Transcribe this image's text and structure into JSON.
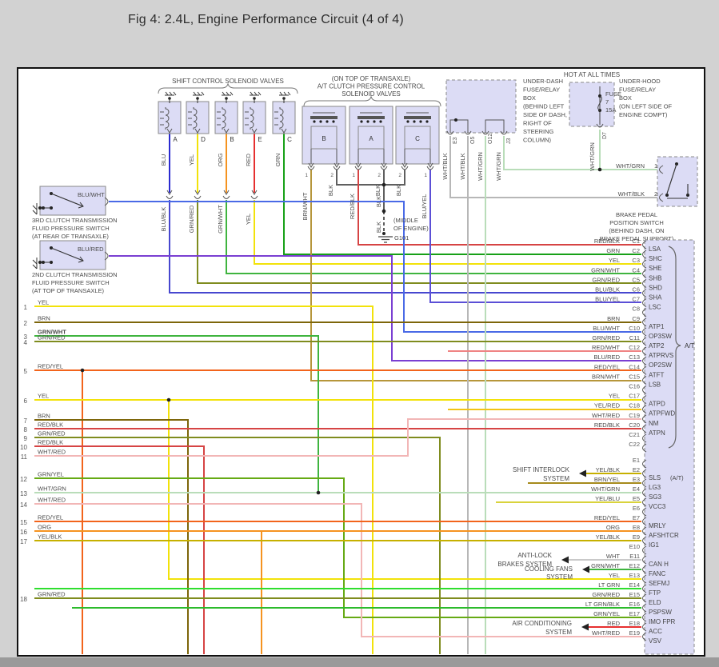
{
  "title": "Fig 4: 2.4L, Engine Performance Circuit (4 of 4)",
  "palette": {
    "YEL": "#f2e20a",
    "BRN": "#7d660a",
    "GRN": "#17a017",
    "RED": "#e63030",
    "ORG": "#f59320",
    "BLU": "#2b2bd0",
    "BLK": "#5f5f5f",
    "WHT": "#c9c9c9",
    "BLU/BLK": "#4747cf",
    "GRN/RED": "#7f8c1e",
    "GRN/WHT": "#3fb43f",
    "BLU/YEL": "#5b4fd6",
    "BRN/WHT": "#b6963b",
    "RED/BLK": "#d64444",
    "BLU/WHT": "#4a6ae6",
    "BLU/RED": "#7a3fd2",
    "RED/WHT": "#ef8383",
    "RED/YEL": "#f2641c",
    "YEL/RED": "#f2c414",
    "YEL/BLK": "#c6b000",
    "YEL/BLU": "#d9d33c",
    "WHT/RED": "#f2b6b6",
    "WHT/GRN": "#b9ddb9",
    "WHT/BLK": "#b7b7b7",
    "GRN/YEL": "#66aa14",
    "LT GRN": "#2ede2e",
    "LT GRN/BLK": "#2cbb2c",
    "BRN/YEL": "#a68a1c"
  },
  "shift_group": {
    "title": "SHIFT CONTROL SOLENOID VALVES",
    "units": [
      {
        "letter": "A",
        "wire_top": "BLU",
        "wire_bottom": "BLU/BLK"
      },
      {
        "letter": "D",
        "wire_top": "YEL",
        "wire_bottom": "GRN/RED"
      },
      {
        "letter": "B",
        "wire_top": "ORG",
        "wire_bottom": "GRN/WHT"
      },
      {
        "letter": "E",
        "wire_top": "RED",
        "wire_bottom": "YEL"
      },
      {
        "letter": "C",
        "wire_top": "GRN",
        "wire_bottom": ""
      }
    ]
  },
  "clutch_group": {
    "title_lines": [
      "(ON TOP OF TRANSAXLE)",
      "A/T CLUTCH PRESSURE CONTROL",
      "SOLENOID VALVES"
    ],
    "units": [
      {
        "letter": "B",
        "pins": [
          {
            "n": "1",
            "wire": "BRN/WHT"
          },
          {
            "n": "2",
            "wire": "BLK"
          }
        ]
      },
      {
        "letter": "A",
        "pins": [
          {
            "n": "1",
            "wire": "RED/BLK"
          },
          {
            "n": "2",
            "wire": "BLK"
          }
        ]
      },
      {
        "letter": "C",
        "pins": [
          {
            "n": "2",
            "wire": "BLK"
          },
          {
            "n": "1",
            "wire": "BLU/YEL"
          }
        ]
      }
    ]
  },
  "ground": {
    "id": "G101",
    "wire": "BLK",
    "note_lines": [
      "(MIDDLE",
      "OF ENGINE)"
    ]
  },
  "underdash": {
    "name_lines": [
      "UNDER-DASH",
      "FUSE/RELAY",
      "BOX",
      "(BEHIND LEFT",
      "SIDE OF DASH,",
      "RIGHT OF",
      "STEERING",
      "COLUMN)"
    ],
    "pins": [
      {
        "id": "E3",
        "wire": "WHT/BLK"
      },
      {
        "id": "O5",
        "wire": "WHT/BLK"
      },
      {
        "id": "O12",
        "wire": "WHT/GRN"
      },
      {
        "id": "J3",
        "wire": "WHT/GRN"
      }
    ]
  },
  "underhood": {
    "hot": "HOT AT ALL TIMES",
    "fuse_lines": [
      "FUSE",
      "7",
      "15A"
    ],
    "name_lines": [
      "UNDER-HOOD",
      "FUSE/RELAY",
      "BOX",
      "(ON LEFT SIDE OF",
      "ENGINE COMPT)"
    ],
    "pin": {
      "id": "D7",
      "wire": "WHT/GRN"
    }
  },
  "brake_switch": {
    "name_lines": [
      "BRAKE PEDAL",
      "POSITION SWITCH",
      "(BEHIND DASH, ON",
      "BRAKE PEDAL SUPPORT)"
    ],
    "pins": [
      {
        "n": "1",
        "wire": "WHT/GRN"
      },
      {
        "n": "2",
        "wire": "WHT/BLK"
      }
    ]
  },
  "switch_3rd": {
    "wire": "BLU/WHT",
    "name_lines": [
      "3RD CLUTCH TRANSMISSION",
      "FLUID PRESSURE SWITCH",
      "(AT REAR OF TRANSAXLE)"
    ]
  },
  "switch_2nd": {
    "wire": "BLU/RED",
    "name_lines": [
      "2ND CLUTCH TRANSMISSION",
      "FLUID PRESSURE SWITCH",
      "(AT TOP OF TRANSAXLE)"
    ]
  },
  "left_rows": [
    {
      "n": "1",
      "wire": "YEL"
    },
    {
      "n": "2",
      "wire": "BRN"
    },
    {
      "n": "3",
      "wire": "GRN/WHT"
    },
    {
      "n": "4",
      "wire": "GRN/RED"
    },
    {
      "n": "5",
      "wire": "RED/YEL"
    },
    {
      "n": "6",
      "wire": "YEL"
    },
    {
      "n": "7",
      "wire": "BRN"
    },
    {
      "n": "8",
      "wire": "RED/BLK"
    },
    {
      "n": "9",
      "wire": "GRN/RED"
    },
    {
      "n": "10",
      "wire": "RED/BLK"
    },
    {
      "n": "11",
      "wire": "WHT/RED"
    },
    {
      "n": "12",
      "wire": "GRN/YEL"
    },
    {
      "n": "13",
      "wire": "WHT/GRN"
    },
    {
      "n": "14",
      "wire": "WHT/RED"
    },
    {
      "n": "15",
      "wire": "RED/YEL"
    },
    {
      "n": "16",
      "wire": "ORG"
    },
    {
      "n": "17",
      "wire": "YEL/BLK"
    },
    {
      "n": "18",
      "wire": "GRN/RED"
    }
  ],
  "connector": {
    "group_label": "A/T",
    "e2_note": "(A/T)",
    "c_pins": [
      {
        "id": "C1",
        "wire": "RED/BLK",
        "signal": "LSA"
      },
      {
        "id": "C2",
        "wire": "GRN",
        "signal": "SHC"
      },
      {
        "id": "C3",
        "wire": "YEL",
        "signal": "SHE"
      },
      {
        "id": "C4",
        "wire": "GRN/WHT",
        "signal": "SHB"
      },
      {
        "id": "C5",
        "wire": "GRN/RED",
        "signal": "SHD"
      },
      {
        "id": "C6",
        "wire": "BLU/BLK",
        "signal": "SHA"
      },
      {
        "id": "C7",
        "wire": "BLU/YEL",
        "signal": "LSC"
      },
      {
        "id": "C8",
        "wire": "",
        "signal": ""
      },
      {
        "id": "C9",
        "wire": "BRN",
        "signal": "ATP1"
      },
      {
        "id": "C10",
        "wire": "BLU/WHT",
        "signal": "OP3SW"
      },
      {
        "id": "C11",
        "wire": "GRN/RED",
        "signal": "ATP2"
      },
      {
        "id": "C12",
        "wire": "RED/WHT",
        "signal": "ATPRVS"
      },
      {
        "id": "C13",
        "wire": "BLU/RED",
        "signal": "OP2SW"
      },
      {
        "id": "C14",
        "wire": "RED/YEL",
        "signal": "ATFT"
      },
      {
        "id": "C15",
        "wire": "BRN/WHT",
        "signal": "LSB"
      },
      {
        "id": "C16",
        "wire": "",
        "signal": ""
      },
      {
        "id": "C17",
        "wire": "YEL",
        "signal": "ATPD"
      },
      {
        "id": "C18",
        "wire": "YEL/RED",
        "signal": "ATPFWD"
      },
      {
        "id": "C19",
        "wire": "WHT/RED",
        "signal": "NM"
      },
      {
        "id": "C20",
        "wire": "RED/BLK",
        "signal": "ATPN"
      },
      {
        "id": "C21",
        "wire": "",
        "signal": ""
      },
      {
        "id": "C22",
        "wire": "",
        "signal": ""
      }
    ],
    "e_pins": [
      {
        "id": "E1",
        "wire": "",
        "signal": ""
      },
      {
        "id": "E2",
        "wire": "YEL/BLK",
        "signal": "SLS"
      },
      {
        "id": "E3",
        "wire": "BRN/YEL",
        "signal": "LG3"
      },
      {
        "id": "E4",
        "wire": "WHT/GRN",
        "signal": "SG3"
      },
      {
        "id": "E5",
        "wire": "YEL/BLU",
        "signal": "VCC3"
      },
      {
        "id": "E6",
        "wire": "",
        "signal": ""
      },
      {
        "id": "E7",
        "wire": "RED/YEL",
        "signal": "MRLY"
      },
      {
        "id": "E8",
        "wire": "ORG",
        "signal": "AFSHTCR"
      },
      {
        "id": "E9",
        "wire": "YEL/BLK",
        "signal": "IG1"
      },
      {
        "id": "E10",
        "wire": "",
        "signal": ""
      },
      {
        "id": "E11",
        "wire": "WHT",
        "signal": "CAN H"
      },
      {
        "id": "E12",
        "wire": "GRN/WHT",
        "signal": "FANC"
      },
      {
        "id": "E13",
        "wire": "YEL",
        "signal": "SEFMJ"
      },
      {
        "id": "E14",
        "wire": "LT GRN",
        "signal": "FTP"
      },
      {
        "id": "E15",
        "wire": "GRN/RED",
        "signal": "ELD"
      },
      {
        "id": "E16",
        "wire": "LT GRN/BLK",
        "signal": "PSPSW"
      },
      {
        "id": "E17",
        "wire": "GRN/YEL",
        "signal": "IMO FPR"
      },
      {
        "id": "E18",
        "wire": "RED",
        "signal": "ACC"
      },
      {
        "id": "E19",
        "wire": "WHT/RED",
        "signal": "VSV"
      }
    ]
  },
  "system_arrows": [
    {
      "lines": [
        "SHIFT INTERLOCK",
        "SYSTEM"
      ],
      "pin": "E2"
    },
    {
      "lines": [
        "ANTI-LOCK",
        "BRAKES SYSTEM"
      ],
      "pin": "E11"
    },
    {
      "lines": [
        "COOLING FANS",
        "SYSTEM"
      ],
      "pin": "E12"
    },
    {
      "lines": [
        "AIR CONDITIONING",
        "SYSTEM"
      ],
      "pin": "E18"
    }
  ]
}
